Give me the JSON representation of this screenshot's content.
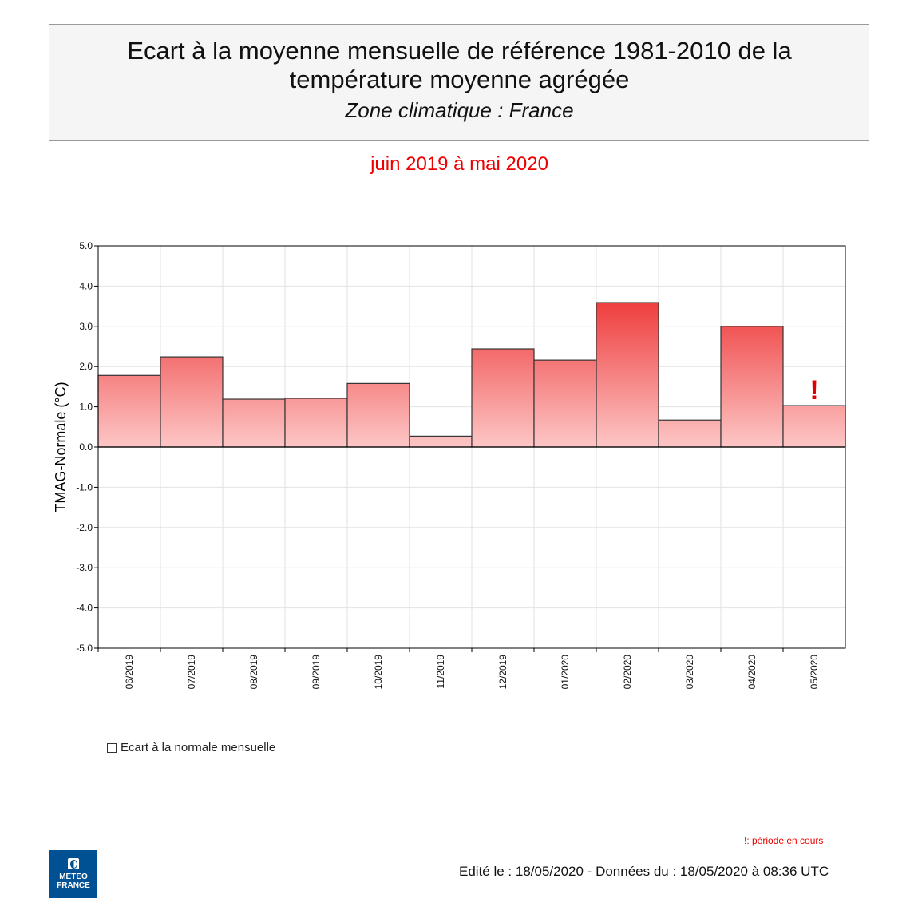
{
  "header": {
    "title_line1": "Ecart à la moyenne mensuelle de référence 1981-2010 de la",
    "title_line2": "température moyenne  agrégée",
    "subtitle": "Zone climatique : France"
  },
  "period": "juin 2019 à mai 2020",
  "chart_data": {
    "type": "bar",
    "ylabel": "TMAG-Normale (°C)",
    "ylim": [
      -5,
      5
    ],
    "yticks": [
      "5.0",
      "4.0",
      "3.0",
      "2.0",
      "1.0",
      "0.0",
      "-1.0",
      "-2.0",
      "-3.0",
      "-4.0",
      "-5.0"
    ],
    "grid": true,
    "categories": [
      "06/2019",
      "07/2019",
      "08/2019",
      "09/2019",
      "10/2019",
      "11/2019",
      "12/2019",
      "01/2020",
      "02/2020",
      "03/2020",
      "04/2020",
      "05/2020"
    ],
    "values": [
      1.78,
      2.24,
      1.19,
      1.21,
      1.58,
      0.27,
      2.44,
      2.16,
      3.59,
      0.67,
      3.0,
      1.03
    ],
    "legend": "Ecart à la normale mensuelle",
    "legend_position": "bottom-left",
    "marker_label": "!",
    "marker_category": "05/2020",
    "colors": {
      "bar_top": "#ee3a3a",
      "bar_bottom": "#fdc6c6",
      "marker": "#e00000"
    }
  },
  "footer": {
    "note": "!: période en cours",
    "edited": "Edité le : 18/05/2020 - Données du : 18/05/2020 à 08:36 UTC",
    "logo_text": "METEO FRANCE"
  }
}
